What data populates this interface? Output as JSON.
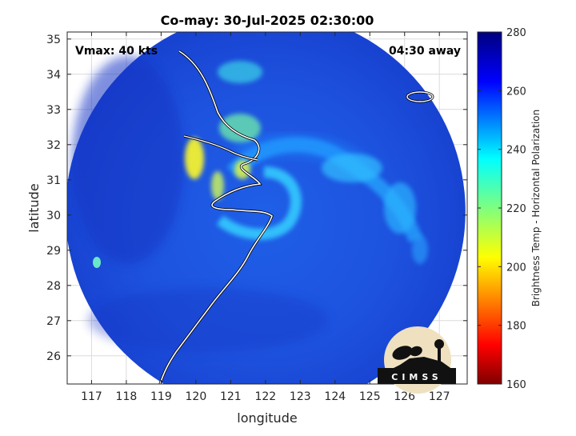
{
  "chart_data": {
    "type": "heatmap",
    "title": "Co-may: 30-Jul-2025 02:30:00",
    "xlabel": "longitude",
    "ylabel": "latitude",
    "xlim": [
      116.3,
      127.8
    ],
    "ylim": [
      25.2,
      35.2
    ],
    "xticks": [
      117,
      118,
      119,
      120,
      121,
      122,
      123,
      124,
      125,
      126,
      127
    ],
    "yticks": [
      26,
      27,
      28,
      29,
      30,
      31,
      32,
      33,
      34,
      35
    ],
    "grid": true,
    "annotations": {
      "vmax": "Vmax: 40 kts",
      "time_away": "04:30 away"
    },
    "colorbar": {
      "label": "Brightness Temp - Horizontal Polarization",
      "range": [
        160,
        280
      ],
      "ticks": [
        160,
        180,
        200,
        220,
        240,
        260,
        280
      ],
      "colormap": "jet"
    },
    "swath": {
      "center_lon": 122.0,
      "center_lat": 30.1,
      "radius_deg": 5.75,
      "background_temp": 268
    },
    "features": [
      {
        "name": "storm core ring",
        "lon": 122.3,
        "lat": 30.5,
        "temp": 238
      },
      {
        "name": "band east",
        "lon": 124.5,
        "lat": 31.0,
        "temp": 240
      },
      {
        "name": "band far east",
        "lon": 126.0,
        "lat": 29.8,
        "temp": 238
      },
      {
        "name": "warm coastal land",
        "lon": 120.2,
        "lat": 31.3,
        "temp": 210
      },
      {
        "name": "land north",
        "lon": 121.3,
        "lat": 32.5,
        "temp": 232
      },
      {
        "name": "Taiwan spot",
        "lon": 117.2,
        "lat": 28.6,
        "temp": 228
      }
    ]
  },
  "logo": {
    "text": "CIMSS"
  }
}
